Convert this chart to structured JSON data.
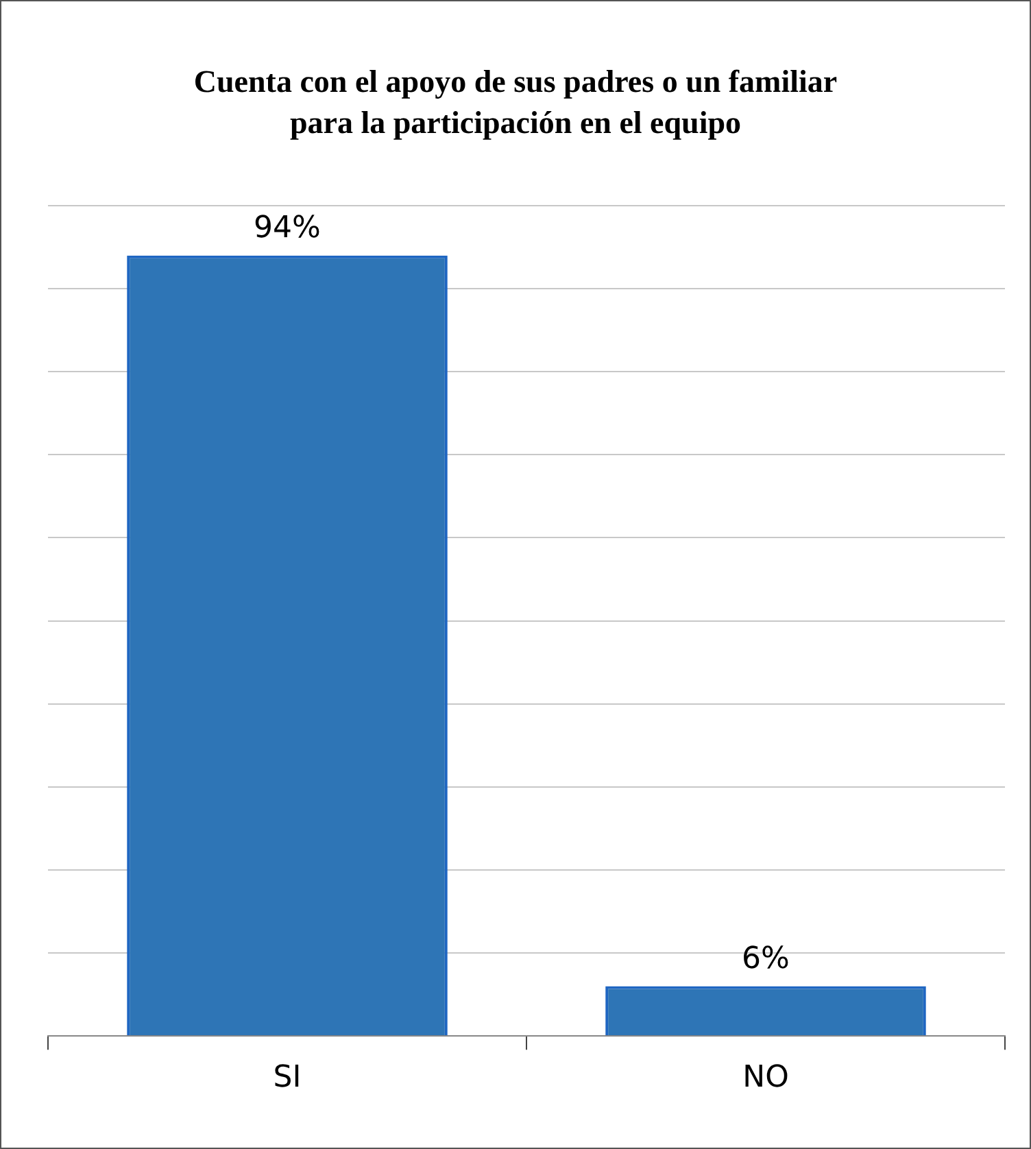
{
  "chart_data": {
    "type": "bar",
    "title": "Cuenta con el apoyo de sus padres o un familiar para la participación en el equipo",
    "categories": [
      "SI",
      "NO"
    ],
    "values": [
      94,
      6
    ],
    "value_labels": [
      "94%",
      "6%"
    ],
    "color": "#2e75b6",
    "ylim": [
      0,
      100
    ],
    "yticks": [
      {
        "value": 0,
        "label": null
      },
      {
        "value": 10,
        "label": null
      },
      {
        "value": 20,
        "label": null
      },
      {
        "value": 30,
        "label": null
      },
      {
        "value": 40,
        "label": null
      },
      {
        "value": 50,
        "label": null
      },
      {
        "value": 60,
        "label": null
      },
      {
        "value": 70,
        "label": null
      },
      {
        "value": 80,
        "label": null
      },
      {
        "value": 90,
        "label": null
      },
      {
        "value": 100,
        "label": null
      }
    ],
    "tick_labels": "x",
    "grid": "y",
    "legend": false
  }
}
